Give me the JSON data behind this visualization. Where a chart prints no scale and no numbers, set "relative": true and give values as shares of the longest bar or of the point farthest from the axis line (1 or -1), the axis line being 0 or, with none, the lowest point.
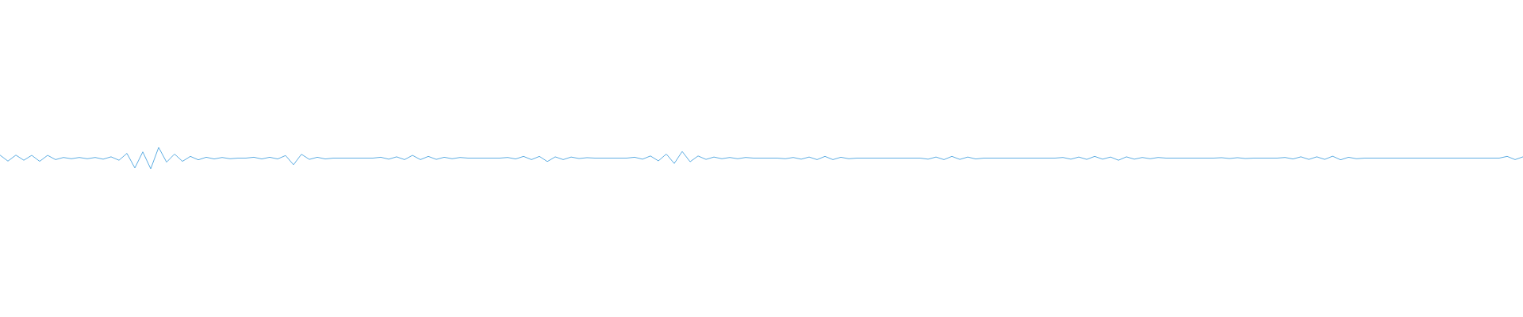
{
  "chart_data": {
    "type": "line",
    "relative": true,
    "color": "#5dade2",
    "categories": [
      null,
      null,
      null,
      null,
      null,
      null,
      null,
      null,
      null,
      null,
      null,
      null,
      null,
      null,
      null,
      null,
      null,
      null,
      null,
      null,
      null,
      null,
      null,
      null,
      null,
      null,
      null,
      null,
      null,
      null,
      null,
      null,
      null,
      null,
      null,
      null,
      null,
      null,
      null,
      null,
      null,
      null,
      null,
      null,
      null,
      null,
      null,
      null,
      null,
      null,
      null,
      null,
      null,
      null,
      null,
      null,
      null,
      null,
      null,
      null,
      null,
      null,
      null,
      null,
      null,
      null,
      null,
      null,
      null,
      null,
      null,
      null,
      null,
      null,
      null,
      null,
      null,
      null,
      null,
      null,
      null,
      null,
      null,
      null,
      null,
      null,
      null,
      null,
      null,
      null,
      null,
      null,
      null,
      null,
      null,
      null,
      null,
      null,
      null,
      null,
      null,
      null,
      null,
      null,
      null,
      null,
      null,
      null,
      null,
      null,
      null,
      null,
      null,
      null,
      null,
      null,
      null,
      null,
      null,
      null,
      null,
      null,
      null,
      null,
      null,
      null,
      null,
      null,
      null,
      null,
      null,
      null,
      null,
      null,
      null,
      null,
      null,
      null,
      null,
      null,
      null,
      null,
      null,
      null,
      null,
      null,
      null,
      null,
      null,
      null,
      null,
      null,
      null,
      null,
      null,
      null,
      null,
      null,
      null,
      null,
      null,
      null,
      null,
      null,
      null,
      null,
      null,
      null,
      null,
      null,
      null,
      null,
      null,
      null,
      null,
      null,
      null,
      null,
      null,
      null,
      null,
      null,
      null,
      null,
      null,
      null,
      null,
      null,
      null,
      null,
      null,
      null,
      null
    ],
    "values": [
      0.64,
      0.36,
      0.64,
      0.4,
      0.63,
      0.35,
      0.63,
      0.43,
      0.53,
      0.47,
      0.53,
      0.47,
      0.53,
      0.45,
      0.56,
      0.4,
      0.72,
      0.04,
      0.79,
      0,
      1,
      0.31,
      0.69,
      0.35,
      0.58,
      0.42,
      0.54,
      0.46,
      0.53,
      0.47,
      0.5,
      0.5,
      0.54,
      0.46,
      0.54,
      0.46,
      0.62,
      0.19,
      0.68,
      0.44,
      0.54,
      0.46,
      0.5,
      0.5,
      0.5,
      0.5,
      0.5,
      0.5,
      0.54,
      0.45,
      0.56,
      0.43,
      0.63,
      0.43,
      0.58,
      0.44,
      0.54,
      0.47,
      0.53,
      0.5,
      0.5,
      0.5,
      0.5,
      0.5,
      0.53,
      0.46,
      0.58,
      0.43,
      0.58,
      0.34,
      0.56,
      0.43,
      0.55,
      0.48,
      0.52,
      0.5,
      0.5,
      0.5,
      0.5,
      0.5,
      0.54,
      0.45,
      0.6,
      0.37,
      0.69,
      0.25,
      0.81,
      0.33,
      0.6,
      0.44,
      0.55,
      0.47,
      0.53,
      0.47,
      0.53,
      0.5,
      0.5,
      0.5,
      0.5,
      0.47,
      0.53,
      0.45,
      0.55,
      0.43,
      0.58,
      0.43,
      0.54,
      0.47,
      0.5,
      0.5,
      0.5,
      0.5,
      0.5,
      0.5,
      0.5,
      0.5,
      0.5,
      0.45,
      0.55,
      0.43,
      0.58,
      0.44,
      0.55,
      0.46,
      0.5,
      0.5,
      0.5,
      0.5,
      0.5,
      0.5,
      0.5,
      0.5,
      0.5,
      0.5,
      0.53,
      0.45,
      0.55,
      0.44,
      0.58,
      0.45,
      0.55,
      0.4,
      0.56,
      0.45,
      0.53,
      0.47,
      0.53,
      0.5,
      0.5,
      0.5,
      0.5,
      0.5,
      0.5,
      0.5,
      0.52,
      0.48,
      0.52,
      0.48,
      0.5,
      0.5,
      0.5,
      0.5,
      0.53,
      0.46,
      0.56,
      0.44,
      0.56,
      0.44,
      0.59,
      0.42,
      0.54,
      0.47,
      0.5,
      0.5,
      0.5,
      0.5,
      0.5,
      0.5,
      0.5,
      0.5,
      0.5,
      0.5,
      0.5,
      0.5,
      0.5,
      0.5,
      0.5,
      0.5,
      0.5,
      0.5,
      0.58,
      0.43,
      0.56
    ]
  }
}
